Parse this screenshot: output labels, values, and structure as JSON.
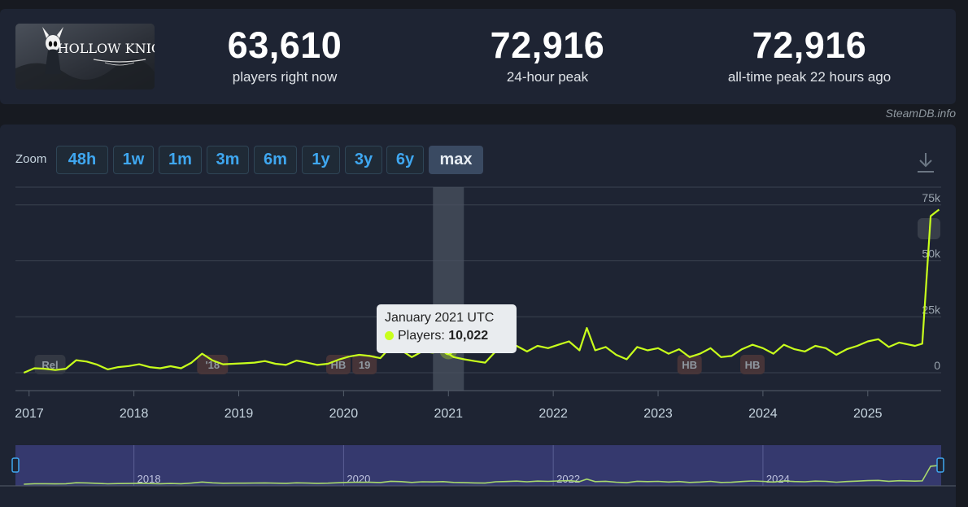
{
  "header": {
    "game_logo_text": "HOLLOW KNIGHT",
    "players_now": "63,610",
    "players_now_label": "players right now",
    "peak_24h": "72,916",
    "peak_24h_label": "24-hour peak",
    "all_time_peak": "72,916",
    "all_time_peak_label": "all-time peak 22 hours ago"
  },
  "credit": "SteamDB.info",
  "zoom": {
    "label": "Zoom",
    "buttons": [
      "48h",
      "1w",
      "1m",
      "3m",
      "6m",
      "1y",
      "3y",
      "6y",
      "max"
    ],
    "active": "max"
  },
  "tooltip": {
    "title": "January 2021 UTC",
    "series_label": "Players:",
    "value": "10,022"
  },
  "colors": {
    "series": "#c8ff1c",
    "navigator_bg": "#35396e",
    "accent_button": "#3fa7f0"
  },
  "chart_data": {
    "type": "line",
    "title": "",
    "xlabel": "",
    "ylabel": "",
    "ylim": [
      0,
      80000
    ],
    "y_ticks": [
      "0",
      "25k",
      "50k",
      "75k"
    ],
    "x_ticks": [
      "2017",
      "2018",
      "2019",
      "2020",
      "2021",
      "2022",
      "2023",
      "2024",
      "2025"
    ],
    "navigator_ticks": [
      "2018",
      "2020",
      "2022",
      "2024"
    ],
    "annotations": [
      {
        "label": "Rel",
        "x": 2017.2
      },
      {
        "label": "'18",
        "x": 2018.75
      },
      {
        "label": "HB",
        "x": 2019.95
      },
      {
        "label": "19",
        "x": 2020.2
      },
      {
        "label": "HB",
        "x": 2023.3
      },
      {
        "label": "HB",
        "x": 2023.9
      }
    ],
    "highlight": {
      "x": 2021.0,
      "y": 10022
    },
    "series": [
      {
        "x": [
          2016.95,
          2017.05,
          2017.15,
          2017.25,
          2017.35,
          2017.45,
          2017.55,
          2017.65,
          2017.75,
          2017.85,
          2017.95,
          2018.05,
          2018.15,
          2018.25,
          2018.35,
          2018.45,
          2018.55,
          2018.65,
          2018.75,
          2018.85,
          2018.95,
          2019.05,
          2019.15,
          2019.25,
          2019.35,
          2019.45,
          2019.55,
          2019.65,
          2019.75,
          2019.85,
          2019.95,
          2020.05,
          2020.15,
          2020.25,
          2020.35,
          2020.45,
          2020.55,
          2020.65,
          2020.75,
          2020.85,
          2020.95,
          2021.05,
          2021.15,
          2021.25,
          2021.35,
          2021.45,
          2021.55,
          2021.65,
          2021.75,
          2021.85,
          2021.95,
          2022.05,
          2022.15,
          2022.25,
          2022.32,
          2022.4,
          2022.5,
          2022.6,
          2022.7,
          2022.8,
          2022.9,
          2023.0,
          2023.1,
          2023.2,
          2023.3,
          2023.4,
          2023.5,
          2023.6,
          2023.7,
          2023.8,
          2023.9,
          2024.0,
          2024.1,
          2024.2,
          2024.3,
          2024.4,
          2024.5,
          2024.6,
          2024.7,
          2024.8,
          2024.9,
          2025.0,
          2025.1,
          2025.2,
          2025.3,
          2025.45,
          2025.52,
          2025.6,
          2025.68
        ],
        "y": [
          0,
          2000,
          1800,
          1200,
          1800,
          5600,
          5000,
          3600,
          1500,
          2500,
          3000,
          3800,
          2500,
          2000,
          2900,
          2000,
          4500,
          8500,
          5500,
          3800,
          4000,
          4200,
          4500,
          5200,
          4000,
          3500,
          5400,
          4500,
          3500,
          4000,
          5800,
          7200,
          8000,
          7500,
          6500,
          11500,
          10000,
          7000,
          9500,
          9000,
          10022,
          7000,
          6000,
          5200,
          4500,
          9500,
          10500,
          12000,
          9500,
          12000,
          11000,
          12500,
          14000,
          10000,
          20000,
          10000,
          11500,
          8000,
          6000,
          11500,
          10000,
          11000,
          8500,
          10500,
          7000,
          8500,
          11000,
          7000,
          7500,
          10500,
          12500,
          11000,
          8500,
          12500,
          10500,
          9500,
          12000,
          11000,
          8000,
          10500,
          12000,
          14000,
          15000,
          11500,
          13500,
          12000,
          13000,
          70000,
          72916
        ]
      }
    ]
  }
}
